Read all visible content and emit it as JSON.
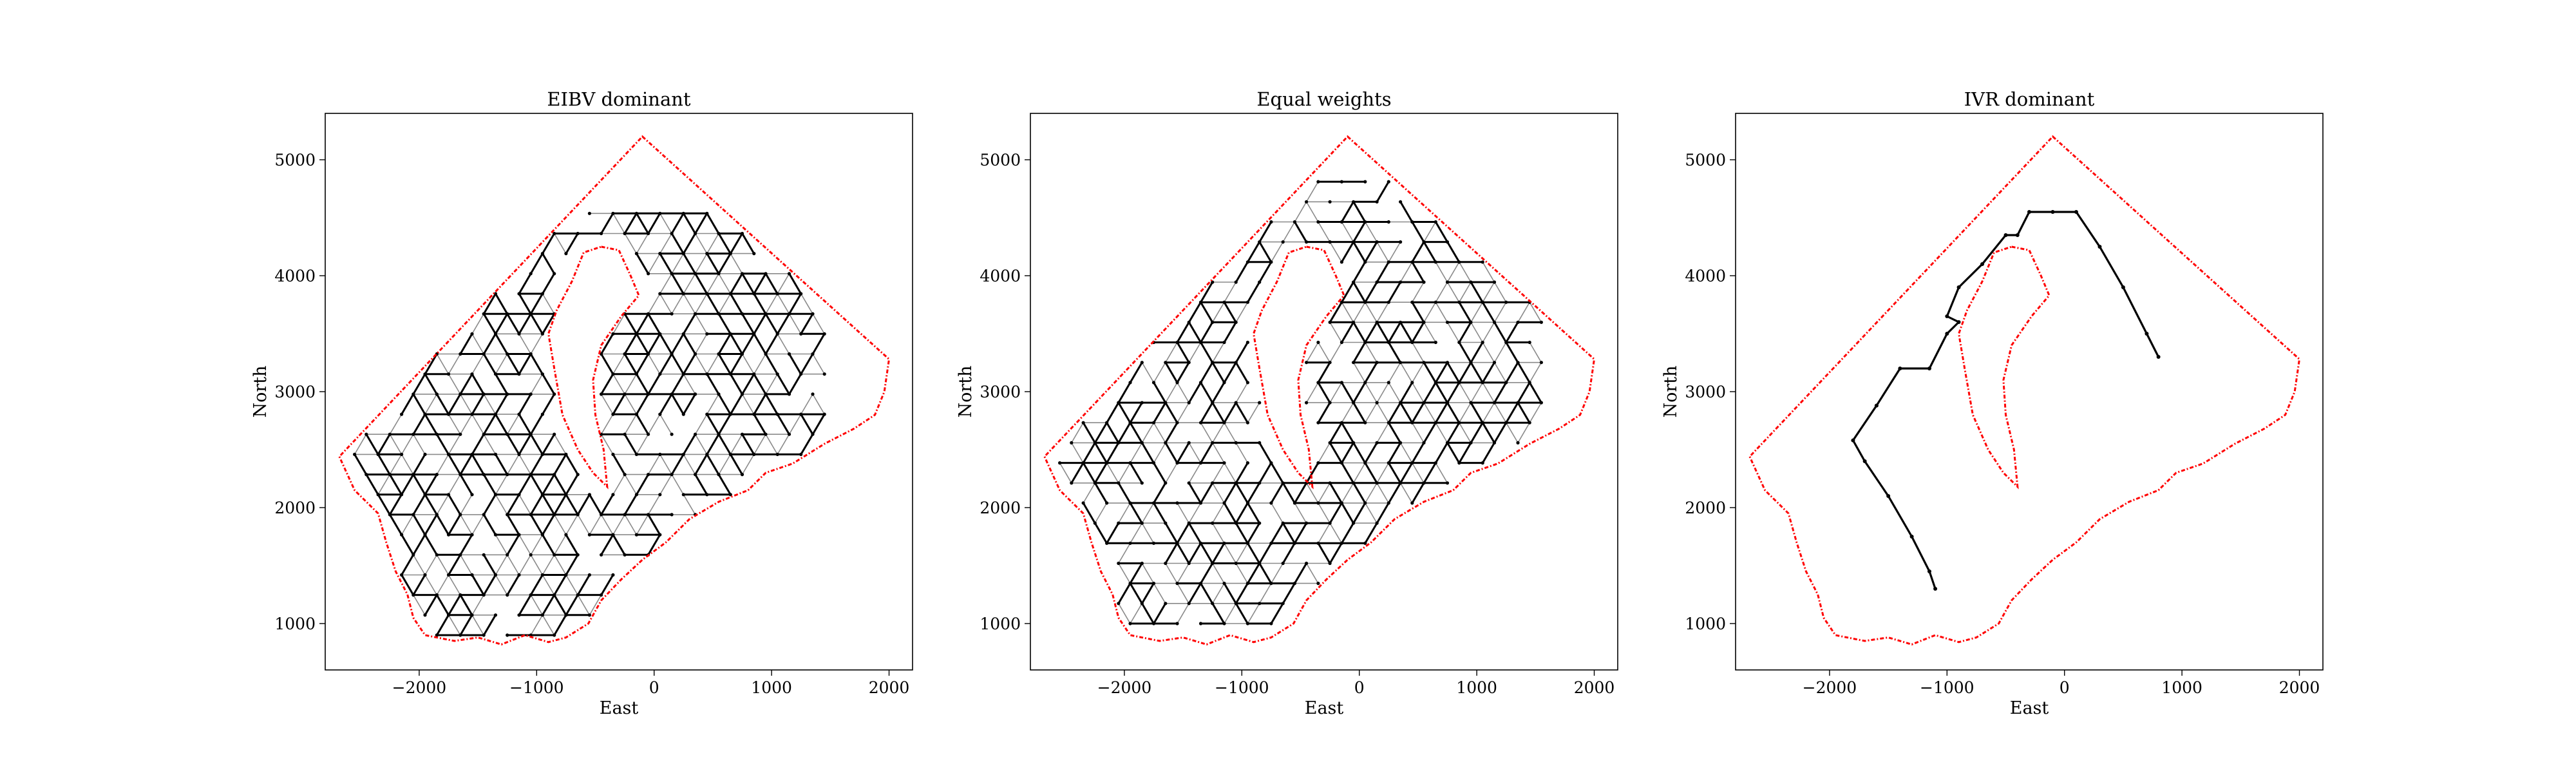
{
  "chart_data": [
    {
      "type": "line",
      "title": "EIBV dominant",
      "xlabel": "East",
      "ylabel": "North",
      "xlim": [
        -2800,
        2200
      ],
      "ylim": [
        600,
        5400
      ],
      "xticks": [
        -2000,
        -1000,
        0,
        1000,
        2000
      ],
      "xtick_labels": [
        "−2000",
        "−1000",
        "0",
        "1000",
        "2000"
      ],
      "yticks": [
        1000,
        2000,
        3000,
        4000,
        5000
      ],
      "ytick_labels": [
        "1000",
        "2000",
        "3000",
        "4000",
        "5000"
      ],
      "grid": false,
      "boundary_color": "#ff0000",
      "path_color": "#000000",
      "outer_boundary": [
        [
          -100,
          5200
        ],
        [
          2000,
          3280
        ],
        [
          1960,
          3000
        ],
        [
          1880,
          2800
        ],
        [
          1700,
          2680
        ],
        [
          1450,
          2550
        ],
        [
          1180,
          2380
        ],
        [
          950,
          2300
        ],
        [
          800,
          2150
        ],
        [
          550,
          2050
        ],
        [
          300,
          1900
        ],
        [
          100,
          1700
        ],
        [
          -100,
          1550
        ],
        [
          -280,
          1380
        ],
        [
          -450,
          1200
        ],
        [
          -560,
          1000
        ],
        [
          -750,
          880
        ],
        [
          -900,
          840
        ],
        [
          -1100,
          900
        ],
        [
          -1300,
          820
        ],
        [
          -1500,
          880
        ],
        [
          -1700,
          850
        ],
        [
          -1950,
          900
        ],
        [
          -2050,
          1050
        ],
        [
          -2100,
          1250
        ],
        [
          -2200,
          1450
        ],
        [
          -2280,
          1700
        ],
        [
          -2350,
          1950
        ],
        [
          -2550,
          2150
        ],
        [
          -2680,
          2440
        ],
        [
          -100,
          5200
        ]
      ],
      "inner_boundary": [
        [
          -450,
          4250
        ],
        [
          -300,
          4220
        ],
        [
          -200,
          4000
        ],
        [
          -130,
          3830
        ],
        [
          -280,
          3650
        ],
        [
          -450,
          3400
        ],
        [
          -520,
          3100
        ],
        [
          -500,
          2800
        ],
        [
          -430,
          2500
        ],
        [
          -400,
          2180
        ],
        [
          -520,
          2300
        ],
        [
          -650,
          2500
        ],
        [
          -780,
          2800
        ],
        [
          -850,
          3200
        ],
        [
          -900,
          3500
        ],
        [
          -830,
          3700
        ],
        [
          -700,
          3950
        ],
        [
          -600,
          4200
        ],
        [
          -450,
          4250
        ]
      ],
      "path_extent": {
        "xmin": -2450,
        "xmax": 1500,
        "ymin": 900,
        "ymax": 4550
      },
      "path_density": "dense"
    },
    {
      "type": "line",
      "title": "Equal weights",
      "xlabel": "East",
      "ylabel": "North",
      "xlim": [
        -2800,
        2200
      ],
      "ylim": [
        600,
        5400
      ],
      "xticks": [
        -2000,
        -1000,
        0,
        1000,
        2000
      ],
      "xtick_labels": [
        "−2000",
        "−1000",
        "0",
        "1000",
        "2000"
      ],
      "yticks": [
        1000,
        2000,
        3000,
        4000,
        5000
      ],
      "ytick_labels": [
        "1000",
        "2000",
        "3000",
        "4000",
        "5000"
      ],
      "grid": false,
      "boundary_color": "#ff0000",
      "path_color": "#000000",
      "outer_boundary": [
        [
          -100,
          5200
        ],
        [
          2000,
          3280
        ],
        [
          1960,
          3000
        ],
        [
          1880,
          2800
        ],
        [
          1700,
          2680
        ],
        [
          1450,
          2550
        ],
        [
          1180,
          2380
        ],
        [
          950,
          2300
        ],
        [
          800,
          2150
        ],
        [
          550,
          2050
        ],
        [
          300,
          1900
        ],
        [
          100,
          1700
        ],
        [
          -100,
          1550
        ],
        [
          -280,
          1380
        ],
        [
          -450,
          1200
        ],
        [
          -560,
          1000
        ],
        [
          -750,
          880
        ],
        [
          -900,
          840
        ],
        [
          -1100,
          900
        ],
        [
          -1300,
          820
        ],
        [
          -1500,
          880
        ],
        [
          -1700,
          850
        ],
        [
          -1950,
          900
        ],
        [
          -2050,
          1050
        ],
        [
          -2100,
          1250
        ],
        [
          -2200,
          1450
        ],
        [
          -2280,
          1700
        ],
        [
          -2350,
          1950
        ],
        [
          -2550,
          2150
        ],
        [
          -2680,
          2440
        ],
        [
          -100,
          5200
        ]
      ],
      "inner_boundary": [
        [
          -450,
          4250
        ],
        [
          -300,
          4220
        ],
        [
          -200,
          4000
        ],
        [
          -130,
          3830
        ],
        [
          -280,
          3650
        ],
        [
          -450,
          3400
        ],
        [
          -520,
          3100
        ],
        [
          -500,
          2800
        ],
        [
          -430,
          2500
        ],
        [
          -400,
          2180
        ],
        [
          -520,
          2300
        ],
        [
          -650,
          2500
        ],
        [
          -780,
          2800
        ],
        [
          -850,
          3200
        ],
        [
          -900,
          3500
        ],
        [
          -830,
          3700
        ],
        [
          -700,
          3950
        ],
        [
          -600,
          4200
        ],
        [
          -450,
          4250
        ]
      ],
      "path_extent": {
        "xmin": -2550,
        "xmax": 1600,
        "ymin": 1000,
        "ymax": 4850
      },
      "path_density": "dense"
    },
    {
      "type": "line",
      "title": "IVR dominant",
      "xlabel": "East",
      "ylabel": "North",
      "xlim": [
        -2800,
        2200
      ],
      "ylim": [
        600,
        5400
      ],
      "xticks": [
        -2000,
        -1000,
        0,
        1000,
        2000
      ],
      "xtick_labels": [
        "−2000",
        "−1000",
        "0",
        "1000",
        "2000"
      ],
      "yticks": [
        1000,
        2000,
        3000,
        4000,
        5000
      ],
      "ytick_labels": [
        "1000",
        "2000",
        "3000",
        "4000",
        "5000"
      ],
      "grid": false,
      "boundary_color": "#ff0000",
      "path_color": "#000000",
      "outer_boundary": [
        [
          -100,
          5200
        ],
        [
          2000,
          3280
        ],
        [
          1960,
          3000
        ],
        [
          1880,
          2800
        ],
        [
          1700,
          2680
        ],
        [
          1450,
          2550
        ],
        [
          1180,
          2380
        ],
        [
          950,
          2300
        ],
        [
          800,
          2150
        ],
        [
          550,
          2050
        ],
        [
          300,
          1900
        ],
        [
          100,
          1700
        ],
        [
          -100,
          1550
        ],
        [
          -280,
          1380
        ],
        [
          -450,
          1200
        ],
        [
          -560,
          1000
        ],
        [
          -750,
          880
        ],
        [
          -900,
          840
        ],
        [
          -1100,
          900
        ],
        [
          -1300,
          820
        ],
        [
          -1500,
          880
        ],
        [
          -1700,
          850
        ],
        [
          -1950,
          900
        ],
        [
          -2050,
          1050
        ],
        [
          -2100,
          1250
        ],
        [
          -2200,
          1450
        ],
        [
          -2280,
          1700
        ],
        [
          -2350,
          1950
        ],
        [
          -2550,
          2150
        ],
        [
          -2680,
          2440
        ],
        [
          -100,
          5200
        ]
      ],
      "inner_boundary": [
        [
          -450,
          4250
        ],
        [
          -300,
          4220
        ],
        [
          -200,
          4000
        ],
        [
          -130,
          3830
        ],
        [
          -280,
          3650
        ],
        [
          -450,
          3400
        ],
        [
          -520,
          3100
        ],
        [
          -500,
          2800
        ],
        [
          -430,
          2500
        ],
        [
          -400,
          2180
        ],
        [
          -520,
          2300
        ],
        [
          -650,
          2500
        ],
        [
          -780,
          2800
        ],
        [
          -850,
          3200
        ],
        [
          -900,
          3500
        ],
        [
          -830,
          3700
        ],
        [
          -700,
          3950
        ],
        [
          -600,
          4200
        ],
        [
          -450,
          4250
        ]
      ],
      "path": [
        [
          -1100,
          1300
        ],
        [
          -1150,
          1450
        ],
        [
          -1300,
          1750
        ],
        [
          -1500,
          2100
        ],
        [
          -1700,
          2400
        ],
        [
          -1800,
          2580
        ],
        [
          -1600,
          2880
        ],
        [
          -1400,
          3200
        ],
        [
          -1150,
          3200
        ],
        [
          -1000,
          3500
        ],
        [
          -900,
          3600
        ],
        [
          -1000,
          3650
        ],
        [
          -900,
          3900
        ],
        [
          -700,
          4100
        ],
        [
          -500,
          4350
        ],
        [
          -400,
          4350
        ],
        [
          -300,
          4550
        ],
        [
          -100,
          4550
        ],
        [
          100,
          4550
        ],
        [
          300,
          4250
        ],
        [
          500,
          3900
        ],
        [
          700,
          3500
        ],
        [
          800,
          3300
        ]
      ]
    }
  ]
}
